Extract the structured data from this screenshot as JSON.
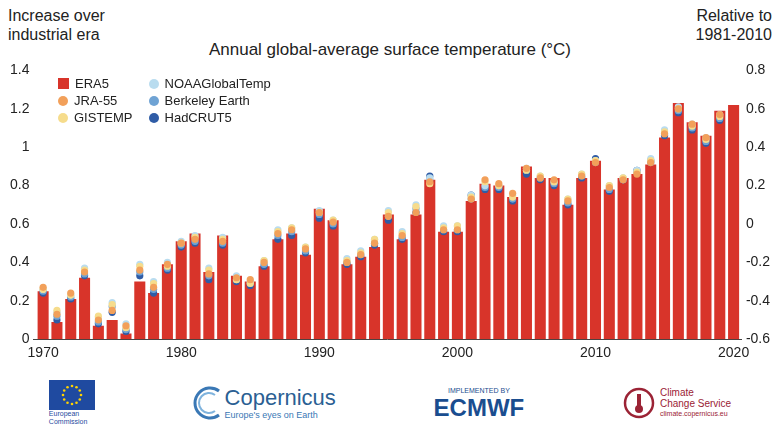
{
  "chart_data": {
    "type": "bar",
    "title": "Annual global-average surface temperature (°C)",
    "ylabel": "Increase over industrial era",
    "y2label": "Relative to 1981-2010",
    "x": [
      1970,
      1971,
      1972,
      1973,
      1974,
      1975,
      1976,
      1977,
      1978,
      1979,
      1980,
      1981,
      1982,
      1983,
      1984,
      1985,
      1986,
      1987,
      1988,
      1989,
      1990,
      1991,
      1992,
      1993,
      1994,
      1995,
      1996,
      1997,
      1998,
      1999,
      2000,
      2001,
      2002,
      2003,
      2004,
      2005,
      2006,
      2007,
      2008,
      2009,
      2010,
      2011,
      2012,
      2013,
      2014,
      2015,
      2016,
      2017,
      2018,
      2019,
      2020
    ],
    "xlim": [
      1969.3,
      2020.6
    ],
    "xticks": [
      1970,
      1980,
      1990,
      2000,
      2010,
      2020
    ],
    "ylim": [
      0,
      1.4
    ],
    "yticks": [
      0,
      0.2,
      0.4,
      0.6,
      0.8,
      1,
      1.2,
      1.4
    ],
    "y2lim": [
      -0.6,
      0.8
    ],
    "y2ticks": [
      -0.6,
      -0.4,
      -0.2,
      0,
      0.2,
      0.4,
      0.6,
      0.8
    ],
    "grid": false,
    "legend": "upper left",
    "series": [
      {
        "name": "ERA5",
        "type": "bar",
        "color": "#d8342a",
        "marker": "square",
        "values": [
          0.25,
          0.09,
          0.21,
          0.32,
          0.07,
          0.1,
          0.03,
          0.3,
          0.24,
          0.39,
          0.51,
          0.55,
          0.35,
          0.54,
          0.33,
          0.3,
          0.38,
          0.52,
          0.55,
          0.44,
          0.68,
          0.62,
          0.39,
          0.43,
          0.48,
          0.65,
          0.52,
          0.65,
          0.83,
          0.56,
          0.56,
          0.72,
          0.81,
          0.8,
          0.74,
          0.9,
          0.84,
          0.84,
          0.7,
          0.84,
          0.93,
          0.78,
          0.84,
          0.86,
          0.91,
          1.05,
          1.23,
          1.13,
          1.06,
          1.19,
          1.22
        ]
      },
      {
        "name": "JRA-55",
        "type": "scatter",
        "color": "#f2a05a",
        "marker": "circle",
        "values": [
          0.27,
          0.13,
          0.24,
          0.35,
          0.1,
          0.15,
          0.07,
          0.36,
          0.27,
          0.39,
          0.5,
          0.52,
          0.34,
          0.51,
          0.32,
          0.31,
          0.4,
          0.55,
          0.57,
          0.47,
          0.66,
          0.61,
          0.4,
          0.44,
          0.5,
          0.64,
          0.54,
          0.66,
          0.82,
          0.57,
          0.57,
          0.73,
          0.83,
          0.81,
          0.76,
          0.89,
          0.84,
          0.83,
          0.72,
          0.85,
          0.92,
          0.79,
          0.83,
          0.86,
          0.92,
          1.07,
          1.2,
          1.12,
          1.05,
          1.17,
          null
        ]
      },
      {
        "name": "GISTEMP",
        "type": "scatter",
        "color": "#f6dc8c",
        "marker": "circle",
        "values": [
          0.26,
          0.15,
          0.23,
          0.36,
          0.12,
          0.18,
          0.06,
          0.38,
          0.29,
          0.38,
          0.5,
          0.53,
          0.36,
          0.52,
          0.31,
          0.29,
          0.41,
          0.56,
          0.58,
          0.48,
          0.66,
          0.62,
          0.41,
          0.45,
          0.52,
          0.66,
          0.55,
          0.69,
          0.81,
          0.58,
          0.59,
          0.74,
          0.82,
          0.8,
          0.74,
          0.88,
          0.85,
          0.82,
          0.73,
          0.86,
          0.93,
          0.8,
          0.84,
          0.87,
          0.93,
          1.08,
          1.2,
          1.11,
          1.04,
          1.16,
          null
        ]
      },
      {
        "name": "NOAAGlobalTemp",
        "type": "scatter",
        "color": "#b9dcef",
        "marker": "circle",
        "values": [
          0.26,
          0.14,
          0.23,
          0.37,
          0.11,
          0.19,
          0.08,
          0.39,
          0.3,
          0.4,
          0.51,
          0.54,
          0.37,
          0.53,
          0.33,
          0.3,
          0.41,
          0.57,
          0.58,
          0.48,
          0.67,
          0.62,
          0.42,
          0.46,
          0.52,
          0.67,
          0.56,
          0.7,
          0.84,
          0.59,
          0.59,
          0.75,
          0.8,
          0.8,
          0.75,
          0.89,
          0.85,
          0.82,
          0.73,
          0.86,
          0.93,
          0.8,
          0.84,
          0.88,
          0.94,
          1.09,
          1.21,
          1.12,
          1.05,
          1.17,
          null
        ]
      },
      {
        "name": "Berkeley Earth",
        "type": "scatter",
        "color": "#6fa3d4",
        "marker": "circle",
        "values": [
          0.25,
          0.12,
          0.22,
          0.34,
          0.09,
          0.17,
          0.05,
          0.35,
          0.26,
          0.37,
          0.49,
          0.51,
          0.33,
          0.5,
          0.31,
          0.29,
          0.39,
          0.54,
          0.56,
          0.46,
          0.65,
          0.6,
          0.4,
          0.44,
          0.5,
          0.64,
          0.53,
          0.68,
          0.83,
          0.57,
          0.57,
          0.73,
          0.79,
          0.79,
          0.73,
          0.88,
          0.84,
          0.81,
          0.71,
          0.85,
          0.92,
          0.78,
          0.83,
          0.87,
          0.92,
          1.07,
          1.19,
          1.1,
          1.03,
          1.15,
          null
        ]
      },
      {
        "name": "HadCRUT5",
        "type": "scatter",
        "color": "#2f5ca6",
        "marker": "circle",
        "values": [
          0.24,
          0.1,
          0.21,
          0.33,
          0.08,
          0.14,
          0.04,
          0.33,
          0.24,
          0.36,
          0.48,
          0.5,
          0.31,
          0.49,
          0.3,
          0.28,
          0.38,
          0.52,
          0.54,
          0.45,
          0.63,
          0.59,
          0.39,
          0.43,
          0.49,
          0.62,
          0.52,
          0.66,
          0.85,
          0.56,
          0.56,
          0.75,
          0.78,
          0.78,
          0.72,
          0.86,
          0.83,
          0.8,
          0.7,
          0.84,
          0.94,
          0.77,
          0.83,
          0.88,
          0.93,
          1.06,
          1.18,
          1.09,
          1.02,
          1.14,
          null
        ]
      }
    ]
  },
  "footer": {
    "logos": [
      [
        "European",
        "Commission"
      ],
      [
        "Copernicus",
        "Europe's eyes on Earth"
      ],
      [
        "IMPLEMENTED BY",
        "ECMWF"
      ],
      [
        "Climate",
        "Change Service",
        "climate.copernicus.eu"
      ]
    ]
  }
}
